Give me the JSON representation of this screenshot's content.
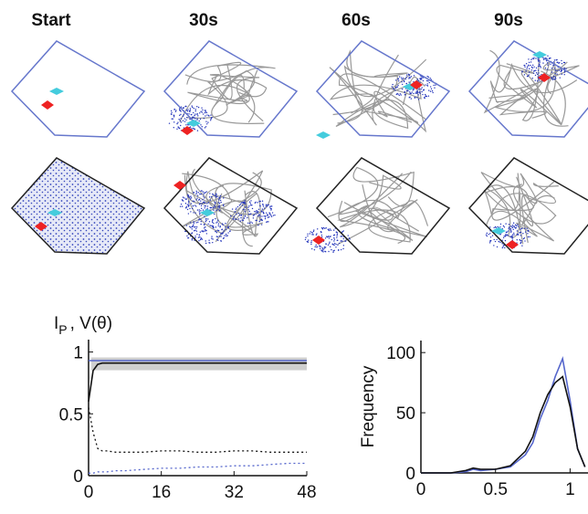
{
  "column_titles": [
    "Start",
    "30s",
    "60s",
    "90s"
  ],
  "chart_data": [
    {
      "type": "line",
      "ylabel": "I",
      "ylabel_sub": "P",
      "ylabel_rest": ", V(θ)",
      "x": [
        0,
        1,
        2,
        3,
        4,
        6,
        8,
        12,
        16,
        20,
        24,
        28,
        32,
        36,
        40,
        44,
        48
      ],
      "series": [
        {
          "color": "#5566cc",
          "style": "solid",
          "values": [
            0.93,
            0.93,
            0.93,
            0.93,
            0.93,
            0.93,
            0.93,
            0.93,
            0.93,
            0.93,
            0.93,
            0.93,
            0.93,
            0.93,
            0.93,
            0.93,
            0.93
          ]
        },
        {
          "color": "#111111",
          "style": "solid",
          "values": [
            0.6,
            0.85,
            0.9,
            0.91,
            0.91,
            0.91,
            0.91,
            0.91,
            0.91,
            0.91,
            0.91,
            0.91,
            0.91,
            0.91,
            0.91,
            0.91,
            0.91
          ]
        },
        {
          "color": "#111111",
          "style": "dotted",
          "values": [
            0.55,
            0.35,
            0.22,
            0.2,
            0.2,
            0.19,
            0.19,
            0.19,
            0.2,
            0.2,
            0.19,
            0.19,
            0.2,
            0.2,
            0.19,
            0.19,
            0.19
          ]
        },
        {
          "color": "#5566cc",
          "style": "dotted",
          "values": [
            0.02,
            0.02,
            0.03,
            0.03,
            0.03,
            0.04,
            0.04,
            0.05,
            0.06,
            0.06,
            0.07,
            0.07,
            0.08,
            0.08,
            0.09,
            0.1,
            0.1
          ]
        }
      ],
      "xlim": [
        0,
        48
      ],
      "xticks": [
        0,
        16,
        32,
        48
      ],
      "ylim": [
        0,
        1.1
      ],
      "yticks": [
        0,
        0.5,
        1
      ]
    },
    {
      "type": "line",
      "ylabel": "Frequency",
      "x": [
        0,
        0.1,
        0.2,
        0.3,
        0.35,
        0.4,
        0.5,
        0.6,
        0.7,
        0.75,
        0.8,
        0.85,
        0.9,
        0.95,
        1.0,
        1.05,
        1.1
      ],
      "series": [
        {
          "color": "#5566cc",
          "style": "solid",
          "values": [
            0,
            0,
            0,
            1,
            3,
            2,
            3,
            5,
            15,
            25,
            45,
            60,
            80,
            95,
            60,
            20,
            5
          ]
        },
        {
          "color": "#111111",
          "style": "solid",
          "values": [
            0,
            0,
            0,
            2,
            4,
            3,
            3,
            6,
            18,
            30,
            50,
            65,
            75,
            80,
            55,
            20,
            5
          ]
        }
      ],
      "xlim": [
        0,
        1.12
      ],
      "xticks": [
        0,
        0.5,
        1
      ],
      "ylim": [
        0,
        110
      ],
      "yticks": [
        0,
        50,
        100
      ]
    }
  ]
}
